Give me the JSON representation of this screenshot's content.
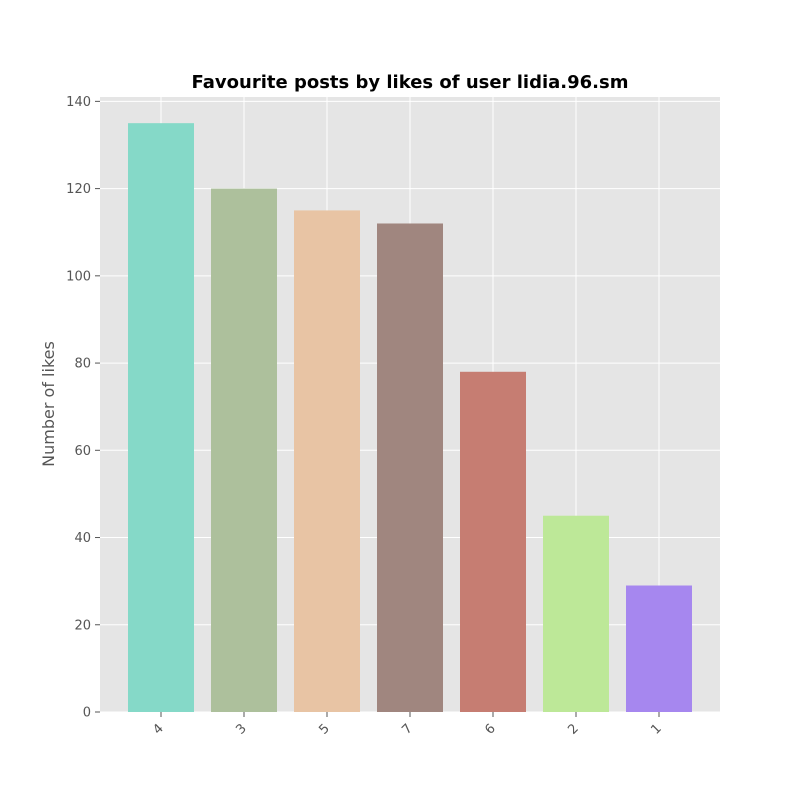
{
  "chart_data": {
    "type": "bar",
    "title": "Favourite posts by likes of user lidia.96.sm",
    "xlabel": "",
    "ylabel": "Number of likes",
    "categories": [
      "4",
      "3",
      "5",
      "7",
      "6",
      "2",
      "1"
    ],
    "values": [
      135,
      120,
      115,
      112,
      78,
      45,
      29
    ],
    "colors": [
      "#85d9c8",
      "#adc09c",
      "#e8c4a4",
      "#a0867f",
      "#c67d72",
      "#bde898",
      "#a687ef"
    ],
    "ylim": [
      0,
      141
    ],
    "yticks": [
      0,
      20,
      40,
      60,
      80,
      100,
      120,
      140
    ],
    "grid": true,
    "legend": "none",
    "style": {
      "background": "#e5e5e5",
      "grid_color": "#ffffff",
      "tick_color": "#555555"
    }
  }
}
